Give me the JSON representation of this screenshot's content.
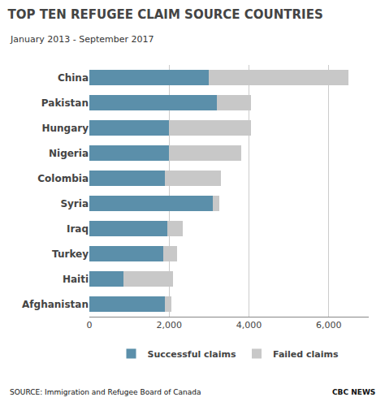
{
  "chart_data": {
    "type": "bar",
    "orientation": "horizontal",
    "stacked": true,
    "title": "TOP TEN REFUGEE CLAIM SOURCE COUNTRIES",
    "subtitle": "January 2013 - September 2017",
    "annotations": [
      "SOURCE: Immigration and Refugee Board of Canada",
      "CBC NEWS"
    ],
    "categories": [
      "China",
      "Pakistan",
      "Hungary",
      "Nigeria",
      "Colombia",
      "Syria",
      "Iraq",
      "Turkey",
      "Haiti",
      "Afghanistan"
    ],
    "series": [
      {
        "name": "Successful claims",
        "color": "#5b8faa",
        "values": [
          3000,
          3200,
          2000,
          2000,
          1900,
          3100,
          1950,
          1850,
          850,
          1900
        ]
      },
      {
        "name": "Failed claims",
        "color": "#c8c8c8",
        "values": [
          3500,
          850,
          2050,
          1800,
          1400,
          150,
          400,
          350,
          1250,
          150
        ]
      }
    ],
    "xlim": [
      0,
      7000
    ],
    "xticks": [
      0,
      {
        "value": 2000,
        "label": "2,000"
      },
      {
        "value": 4000,
        "label": "4,000"
      },
      {
        "value": 6000,
        "label": "6,000"
      }
    ],
    "grid": true,
    "legend": "bottom"
  }
}
